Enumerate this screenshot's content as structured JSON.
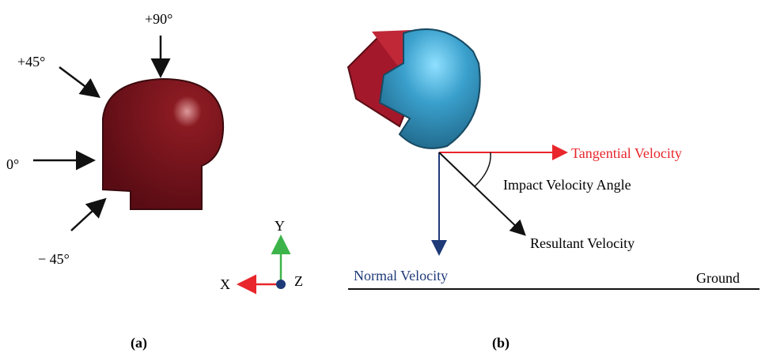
{
  "panel_a": {
    "angles": [
      "+90°",
      "+45°",
      "0°",
      "− 45°"
    ],
    "axes": {
      "y": "Y",
      "x": "X",
      "z": "Z"
    },
    "caption": "(a)"
  },
  "panel_b": {
    "tangential": "Tangential Velocity",
    "angle": "Impact Velocity Angle",
    "resultant": "Resultant Velocity",
    "normal": "Normal Velocity",
    "ground": "Ground",
    "caption": "(b)"
  }
}
